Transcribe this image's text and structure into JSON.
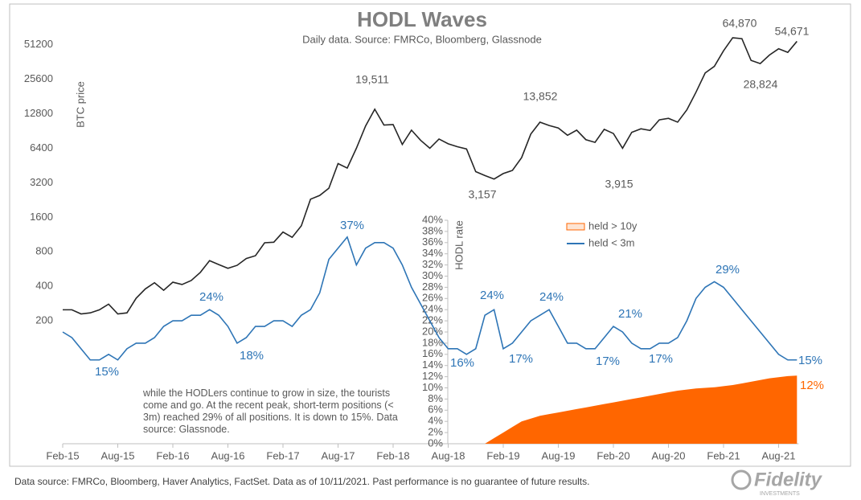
{
  "chart_data": {
    "type": "line",
    "title": "HODL Waves",
    "subtitle": "Daily data.  Source: FMRCo, Bloomberg, Glassnode",
    "y_label": "BTC price",
    "y2_label": "HODL rate",
    "ylog": true,
    "x": [
      "Feb-15",
      "Mar-15",
      "Apr-15",
      "May-15",
      "Jun-15",
      "Jul-15",
      "Aug-15",
      "Sep-15",
      "Oct-15",
      "Nov-15",
      "Dec-15",
      "Jan-16",
      "Feb-16",
      "Mar-16",
      "Apr-16",
      "May-16",
      "Jun-16",
      "Jul-16",
      "Aug-16",
      "Sep-16",
      "Oct-16",
      "Nov-16",
      "Dec-16",
      "Jan-17",
      "Feb-17",
      "Mar-17",
      "Apr-17",
      "May-17",
      "Jun-17",
      "Jul-17",
      "Aug-17",
      "Sep-17",
      "Oct-17",
      "Nov-17",
      "Dec-17",
      "Jan-18",
      "Feb-18",
      "Mar-18",
      "Apr-18",
      "May-18",
      "Jun-18",
      "Jul-18",
      "Aug-18",
      "Sep-18",
      "Oct-18",
      "Nov-18",
      "Dec-18",
      "Jan-19",
      "Feb-19",
      "Mar-19",
      "Apr-19",
      "May-19",
      "Jun-19",
      "Jul-19",
      "Aug-19",
      "Sep-19",
      "Oct-19",
      "Nov-19",
      "Dec-19",
      "Jan-20",
      "Feb-20",
      "Mar-20",
      "Apr-20",
      "May-20",
      "Jun-20",
      "Jul-20",
      "Aug-20",
      "Sep-20",
      "Oct-20",
      "Nov-20",
      "Dec-20",
      "Jan-21",
      "Feb-21",
      "Mar-21",
      "Apr-21",
      "May-21",
      "Jun-21",
      "Jul-21",
      "Aug-21",
      "Sep-21",
      "Oct-21"
    ],
    "xticks": [
      "Feb-15",
      "Aug-15",
      "Feb-16",
      "Aug-16",
      "Feb-17",
      "Aug-17",
      "Feb-18",
      "Aug-18",
      "Feb-19",
      "Aug-19",
      "Feb-20",
      "Aug-20",
      "Feb-21",
      "Aug-21"
    ],
    "ylim": [
      17,
      100000
    ],
    "yticks": [
      200,
      400,
      800,
      1600,
      3200,
      6400,
      12800,
      25600,
      51200
    ],
    "y2lim": [
      0,
      40
    ],
    "y2ticks": [
      {
        "value": 0,
        "label": "0%"
      },
      {
        "value": 2,
        "label": "2%"
      },
      {
        "value": 4,
        "label": "4%"
      },
      {
        "value": 6,
        "label": "6%"
      },
      {
        "value": 8,
        "label": "8%"
      },
      {
        "value": 10,
        "label": "10%"
      },
      {
        "value": 12,
        "label": "12%"
      },
      {
        "value": 14,
        "label": "14%"
      },
      {
        "value": 16,
        "label": "16%"
      },
      {
        "value": 18,
        "label": "18%"
      },
      {
        "value": 20,
        "label": "20%"
      },
      {
        "value": 22,
        "label": "22%"
      },
      {
        "value": 24,
        "label": "24%"
      },
      {
        "value": 26,
        "label": "26%"
      },
      {
        "value": 28,
        "label": "28%"
      },
      {
        "value": 30,
        "label": "30%"
      },
      {
        "value": 32,
        "label": "32%"
      },
      {
        "value": 34,
        "label": "34%"
      },
      {
        "value": 36,
        "label": "36%"
      },
      {
        "value": 38,
        "label": "38%"
      },
      {
        "value": 40,
        "label": "40%"
      }
    ],
    "series": [
      {
        "name": "BTC price",
        "color": "#262626",
        "legend": false,
        "values": [
          250,
          250,
          230,
          235,
          250,
          280,
          230,
          235,
          315,
          380,
          430,
          370,
          435,
          415,
          450,
          530,
          670,
          620,
          575,
          610,
          700,
          740,
          960,
          970,
          1190,
          1070,
          1350,
          2300,
          2480,
          2870,
          4700,
          4300,
          6400,
          10000,
          14000,
          10200,
          10300,
          6900,
          9200,
          7500,
          6400,
          7700,
          7000,
          6600,
          6300,
          4000,
          3700,
          3450,
          3850,
          4100,
          5300,
          8500,
          10800,
          10100,
          9600,
          8300,
          9200,
          7600,
          7200,
          9350,
          8600,
          6400,
          8800,
          9450,
          9150,
          11300,
          11650,
          10800,
          13800,
          19700,
          29000,
          33100,
          45200,
          58800,
          57700,
          37300,
          35000,
          41500,
          47100,
          43800,
          54671
        ]
      },
      {
        "name": "held > 10y",
        "color": "#ff6600",
        "axis": "y2",
        "kind": "area",
        "values": [
          null,
          null,
          null,
          null,
          null,
          null,
          null,
          null,
          null,
          null,
          null,
          null,
          null,
          null,
          null,
          null,
          null,
          null,
          null,
          null,
          null,
          null,
          null,
          null,
          null,
          null,
          null,
          null,
          null,
          null,
          null,
          null,
          null,
          null,
          null,
          null,
          null,
          null,
          null,
          null,
          null,
          null,
          null,
          null,
          null,
          null,
          0,
          1,
          2,
          3,
          4,
          4.5,
          5,
          5.3,
          5.6,
          5.9,
          6.2,
          6.5,
          6.8,
          7.1,
          7.4,
          7.7,
          8.0,
          8.3,
          8.6,
          8.9,
          9.2,
          9.5,
          9.7,
          9.9,
          10.0,
          10.1,
          10.3,
          10.5,
          10.8,
          11.1,
          11.4,
          11.7,
          11.9,
          12.1,
          12.2
        ]
      },
      {
        "name": "held < 3m",
        "color": "#2e75b6",
        "axis": "y2",
        "values": [
          20,
          19,
          17,
          15,
          15,
          16,
          15,
          17,
          18,
          18,
          19,
          21,
          22,
          22,
          23,
          23,
          24,
          23,
          21,
          18,
          19,
          21,
          21,
          22,
          22,
          21,
          23,
          24,
          27,
          33,
          35,
          37,
          32,
          35,
          36,
          36,
          35,
          32,
          28,
          25,
          22,
          19,
          17,
          17,
          16,
          17,
          23,
          24,
          17,
          18,
          20,
          22,
          23,
          24,
          21,
          18,
          18,
          17,
          17,
          19,
          21,
          20,
          18,
          17,
          17,
          18,
          18,
          19,
          22,
          26,
          28,
          29,
          28,
          26,
          24,
          22,
          20,
          18,
          16,
          15,
          15
        ]
      }
    ],
    "annotations": [
      "19,511",
      "13,852",
      "3,157",
      "3,915",
      "64,870",
      "28,824",
      "54,671",
      "15%",
      "24%",
      "18%",
      "37%",
      "16%",
      "24%",
      "17%",
      "24%",
      "17%",
      "21%",
      "17%",
      "29%",
      "15%",
      "12%"
    ],
    "note": "while the HODLers continue to grow in size, the tourists come and go.  At the recent peak, short-term positions (< 3m) reached 29% of all positions.  It is down to 15%.  Data source: Glassnode.",
    "footer": "Data source: FMRCo, Bloomberg, Haver Analytics, FactSet. Data as of 10/11/2021. Past performance is no guarantee of future results.",
    "logo": "Fidelity",
    "logo_sub": "INVESTMENTS"
  }
}
